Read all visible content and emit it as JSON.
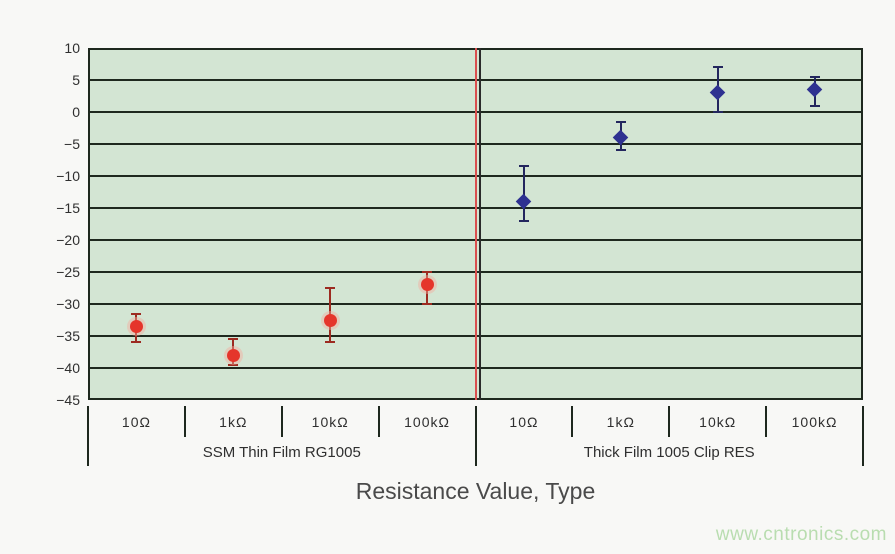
{
  "page": {
    "background": "#f8f8f6",
    "watermark_text": "www.cntronics.com",
    "watermark_color": "#b9ddb0"
  },
  "chart_data": {
    "type": "scatter",
    "title": "",
    "xlabel": "Resistance Value, Type",
    "ylabel": "",
    "ylim": [
      -45,
      10
    ],
    "grid": true,
    "legend": "none",
    "plot_bg_color": "#d3e5d3",
    "grid_color": "#1e281e",
    "yticks": [
      10,
      5,
      0,
      -5,
      -10,
      -15,
      -20,
      -25,
      -30,
      -35,
      -40,
      -45
    ],
    "ytick_labels": [
      "10",
      "5",
      "0",
      "−5",
      "−10",
      "−15",
      "−20",
      "−25",
      "−30",
      "−35",
      "−40",
      "−45"
    ],
    "categories": [
      "10Ω",
      "1kΩ",
      "10kΩ",
      "100kΩ",
      "10Ω",
      "1kΩ",
      "10kΩ",
      "100kΩ"
    ],
    "groups": [
      {
        "label": "SSM Thin Film RG1005",
        "start_index": 0,
        "end_index": 3
      },
      {
        "label": "Thick Film 1005 Clip RES",
        "start_index": 4,
        "end_index": 7
      }
    ],
    "group_divider": {
      "after_category_index": 3,
      "red_line_color": "#d94f4f",
      "dark_line_color": "#2a2a2a"
    },
    "series": [
      {
        "name": "SSM Thin Film RG1005",
        "marker": "circle",
        "marker_color": "#e5352b",
        "error_bar_color": "#9c2a20",
        "points": [
          {
            "category_index": 0,
            "category": "10Ω",
            "value": -33.5,
            "error_high": -31.5,
            "error_low": -36
          },
          {
            "category_index": 1,
            "category": "1kΩ",
            "value": -38,
            "error_high": -35.5,
            "error_low": -39.5
          },
          {
            "category_index": 2,
            "category": "10kΩ",
            "value": -32.5,
            "error_high": -27.5,
            "error_low": -36
          },
          {
            "category_index": 3,
            "category": "100kΩ",
            "value": -27,
            "error_high": -25,
            "error_low": -30
          }
        ]
      },
      {
        "name": "Thick Film 1005 Clip RES",
        "marker": "diamond",
        "marker_color": "#2e3191",
        "error_bar_color": "#23265e",
        "points": [
          {
            "category_index": 4,
            "category": "10Ω",
            "value": -14,
            "error_high": -8.5,
            "error_low": -17
          },
          {
            "category_index": 5,
            "category": "1kΩ",
            "value": -4,
            "error_high": -1.5,
            "error_low": -6
          },
          {
            "category_index": 6,
            "category": "10kΩ",
            "value": 3,
            "error_high": 7,
            "error_low": 0
          },
          {
            "category_index": 7,
            "category": "100kΩ",
            "value": 3.5,
            "error_high": 5.5,
            "error_low": 1
          }
        ]
      }
    ]
  }
}
